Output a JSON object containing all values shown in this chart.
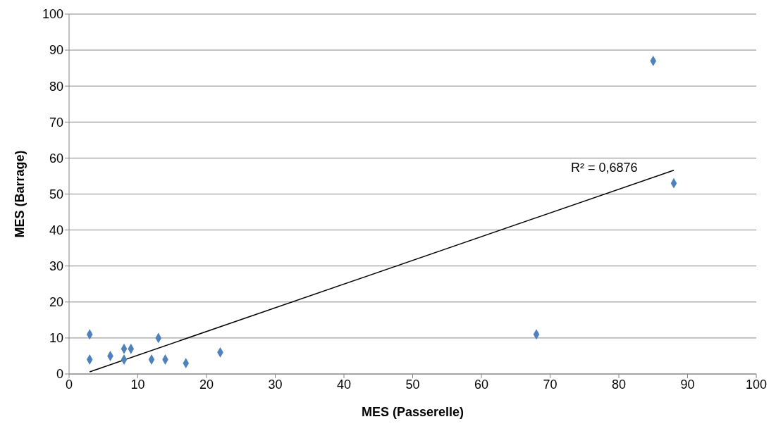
{
  "chart_data": {
    "type": "scatter",
    "xlabel": "MES (Passerelle)",
    "ylabel": "MES (Barrage)",
    "xlim": [
      0,
      100
    ],
    "xticks": [
      0,
      10,
      20,
      30,
      40,
      50,
      60,
      70,
      80,
      90,
      100
    ],
    "ylim": [
      0,
      100
    ],
    "yticks": [
      0,
      10,
      20,
      30,
      40,
      50,
      60,
      70,
      80,
      90,
      100
    ],
    "grid": "y",
    "marker": "diamond",
    "series": [
      {
        "color": "#4f81bd",
        "x": [
          3,
          3,
          6,
          8,
          8,
          9,
          12,
          13,
          14,
          17,
          22,
          68,
          85,
          88
        ],
        "values": [
          11,
          4,
          5,
          7,
          4,
          7,
          4,
          10,
          4,
          3,
          6,
          11,
          87,
          53
        ]
      },
      {
        "type": "line",
        "color": "#000000",
        "marker": "none",
        "line_style": "solid",
        "x": [
          3,
          88
        ],
        "values": [
          0.6,
          56.6
        ]
      }
    ],
    "annotations": [
      "R² = 0,6876"
    ]
  }
}
